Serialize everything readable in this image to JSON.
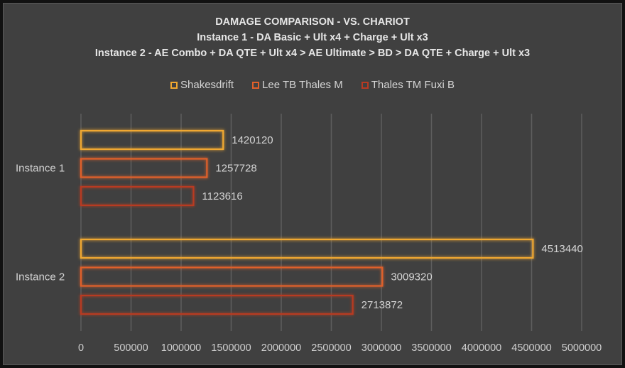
{
  "chart_data": {
    "type": "bar",
    "orientation": "horizontal",
    "title": "DAMAGE COMPARISON - VS. CHARIOT",
    "subtitles": [
      "Instance 1 - DA Basic + Ult x4 + Charge + Ult x3",
      "Instance 2 - AE Combo + DA QTE + Ult x4 > AE Ultimate > BD > DA QTE + Charge + Ult x3"
    ],
    "categories": [
      "Instance 1",
      "Instance 2"
    ],
    "series": [
      {
        "name": "Shakesdrift",
        "color": "#f0a830",
        "values": [
          1420120,
          4513440
        ]
      },
      {
        "name": "Lee TB Thales M",
        "color": "#e0602a",
        "values": [
          1257728,
          3009320
        ]
      },
      {
        "name": "Thales TM Fuxi B",
        "color": "#b83a22",
        "values": [
          1123616,
          2713872
        ]
      }
    ],
    "xlim": [
      0,
      5000000
    ],
    "xticks": [
      0,
      500000,
      1000000,
      1500000,
      2000000,
      2500000,
      3000000,
      3500000,
      4000000,
      4500000,
      5000000
    ],
    "grid": true,
    "legend_position": "top",
    "data_labels": true
  }
}
